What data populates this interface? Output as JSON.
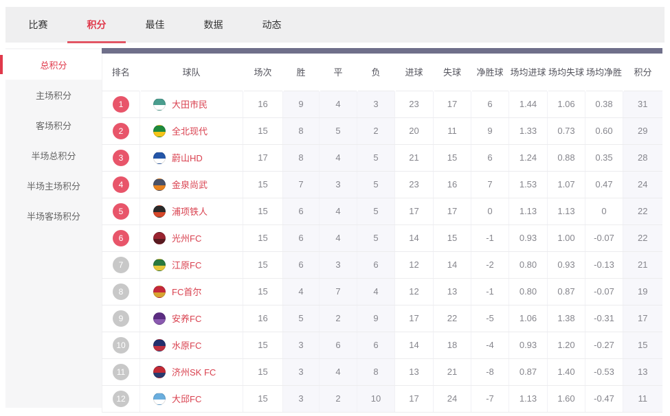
{
  "colors": {
    "accent_red": "#e0394b",
    "tab_underline": "#e25564",
    "rank_badge_top": "#e8556a",
    "rank_badge_rest": "#c8c8c8",
    "team_name_red": "#d9414f",
    "header_bar": "#6f6f8a",
    "tint_column": "#f7f7fb",
    "nav_background": "#efeff0",
    "sidebar_background": "#f6f6f7"
  },
  "nav": {
    "tabs": [
      {
        "label": "比赛",
        "active": false
      },
      {
        "label": "积分",
        "active": true
      },
      {
        "label": "最佳",
        "active": false
      },
      {
        "label": "数据",
        "active": false
      },
      {
        "label": "动态",
        "active": false
      }
    ]
  },
  "sidebar": {
    "items": [
      {
        "label": "总积分",
        "active": true
      },
      {
        "label": "主场积分",
        "active": false
      },
      {
        "label": "客场积分",
        "active": false
      },
      {
        "label": "半场总积分",
        "active": false
      },
      {
        "label": "半场主场积分",
        "active": false
      },
      {
        "label": "半场客场积分",
        "active": false
      }
    ]
  },
  "table": {
    "columns": [
      "排名",
      "球队",
      "场次",
      "胜",
      "平",
      "负",
      "进球",
      "失球",
      "净胜球",
      "场均进球",
      "场均失球",
      "场均净胜",
      "积分"
    ],
    "tinted_value_columns": [
      1,
      2,
      3,
      10
    ],
    "rows": [
      {
        "rank": "1",
        "rank_tier": "top",
        "team": "大田市民",
        "logo": {
          "icon": "daejeon-citizen-crest",
          "c1": "#4a9d8e",
          "c2": "#ffffff"
        },
        "values": [
          "16",
          "9",
          "4",
          "3",
          "23",
          "17",
          "6",
          "1.44",
          "1.06",
          "0.38",
          "31"
        ]
      },
      {
        "rank": "2",
        "rank_tier": "top",
        "team": "全北现代",
        "logo": {
          "icon": "jeonbuk-hyundai-crest",
          "c1": "#1e8a3c",
          "c2": "#f5c518"
        },
        "values": [
          "15",
          "8",
          "5",
          "2",
          "20",
          "11",
          "9",
          "1.33",
          "0.73",
          "0.60",
          "29"
        ]
      },
      {
        "rank": "3",
        "rank_tier": "top",
        "team": "蔚山HD",
        "logo": {
          "icon": "ulsan-hd-crest",
          "c1": "#2456a8",
          "c2": "#ffffff"
        },
        "values": [
          "17",
          "8",
          "4",
          "5",
          "21",
          "15",
          "6",
          "1.24",
          "0.88",
          "0.35",
          "28"
        ]
      },
      {
        "rank": "4",
        "rank_tier": "top",
        "team": "金泉尚武",
        "logo": {
          "icon": "gimcheon-sangmu-crest",
          "c1": "#4a5268",
          "c2": "#e8821e"
        },
        "values": [
          "15",
          "7",
          "3",
          "5",
          "23",
          "16",
          "7",
          "1.53",
          "1.07",
          "0.47",
          "24"
        ]
      },
      {
        "rank": "5",
        "rank_tier": "top",
        "team": "浦项铁人",
        "logo": {
          "icon": "pohang-steelers-crest",
          "c1": "#2a2a2a",
          "c2": "#d6482a"
        },
        "values": [
          "15",
          "6",
          "4",
          "5",
          "17",
          "17",
          "0",
          "1.13",
          "1.13",
          "0",
          "22"
        ]
      },
      {
        "rank": "6",
        "rank_tier": "top",
        "team": "光州FC",
        "logo": {
          "icon": "gwangju-fc-crest",
          "c1": "#9a2430",
          "c2": "#5a1a20"
        },
        "values": [
          "15",
          "6",
          "4",
          "5",
          "14",
          "15",
          "-1",
          "0.93",
          "1.00",
          "-0.07",
          "22"
        ]
      },
      {
        "rank": "7",
        "rank_tier": "rest",
        "team": "江原FC",
        "logo": {
          "icon": "gangwon-fc-crest",
          "c1": "#2a7a3e",
          "c2": "#e8c83a"
        },
        "values": [
          "15",
          "6",
          "3",
          "6",
          "12",
          "14",
          "-2",
          "0.80",
          "0.93",
          "-0.13",
          "21"
        ]
      },
      {
        "rank": "8",
        "rank_tier": "rest",
        "team": "FC首尔",
        "logo": {
          "icon": "fc-seoul-crest",
          "c1": "#c5283a",
          "c2": "#d8a430"
        },
        "values": [
          "15",
          "4",
          "7",
          "4",
          "12",
          "13",
          "-1",
          "0.80",
          "0.87",
          "-0.07",
          "19"
        ]
      },
      {
        "rank": "9",
        "rank_tier": "rest",
        "team": "安养FC",
        "logo": {
          "icon": "anyang-fc-crest",
          "c1": "#5c2d82",
          "c2": "#8a5ab0"
        },
        "values": [
          "16",
          "5",
          "2",
          "9",
          "17",
          "22",
          "-5",
          "1.06",
          "1.38",
          "-0.31",
          "17"
        ]
      },
      {
        "rank": "10",
        "rank_tier": "rest",
        "team": "水原FC",
        "logo": {
          "icon": "suwon-fc-crest",
          "c1": "#23306e",
          "c2": "#c03040"
        },
        "values": [
          "15",
          "3",
          "6",
          "6",
          "14",
          "18",
          "-4",
          "0.93",
          "1.20",
          "-0.27",
          "15"
        ]
      },
      {
        "rank": "11",
        "rank_tier": "rest",
        "team": "济州SK FC",
        "logo": {
          "icon": "jeju-sk-fc-crest",
          "c1": "#c22a35",
          "c2": "#2a3a6e"
        },
        "values": [
          "15",
          "3",
          "4",
          "8",
          "13",
          "21",
          "-8",
          "0.87",
          "1.40",
          "-0.53",
          "13"
        ]
      },
      {
        "rank": "12",
        "rank_tier": "rest",
        "team": "大邱FC",
        "logo": {
          "icon": "daegu-fc-crest",
          "c1": "#6aaede",
          "c2": "#ffffff"
        },
        "values": [
          "15",
          "3",
          "2",
          "10",
          "17",
          "24",
          "-7",
          "1.13",
          "1.60",
          "-0.47",
          "11"
        ]
      }
    ]
  }
}
